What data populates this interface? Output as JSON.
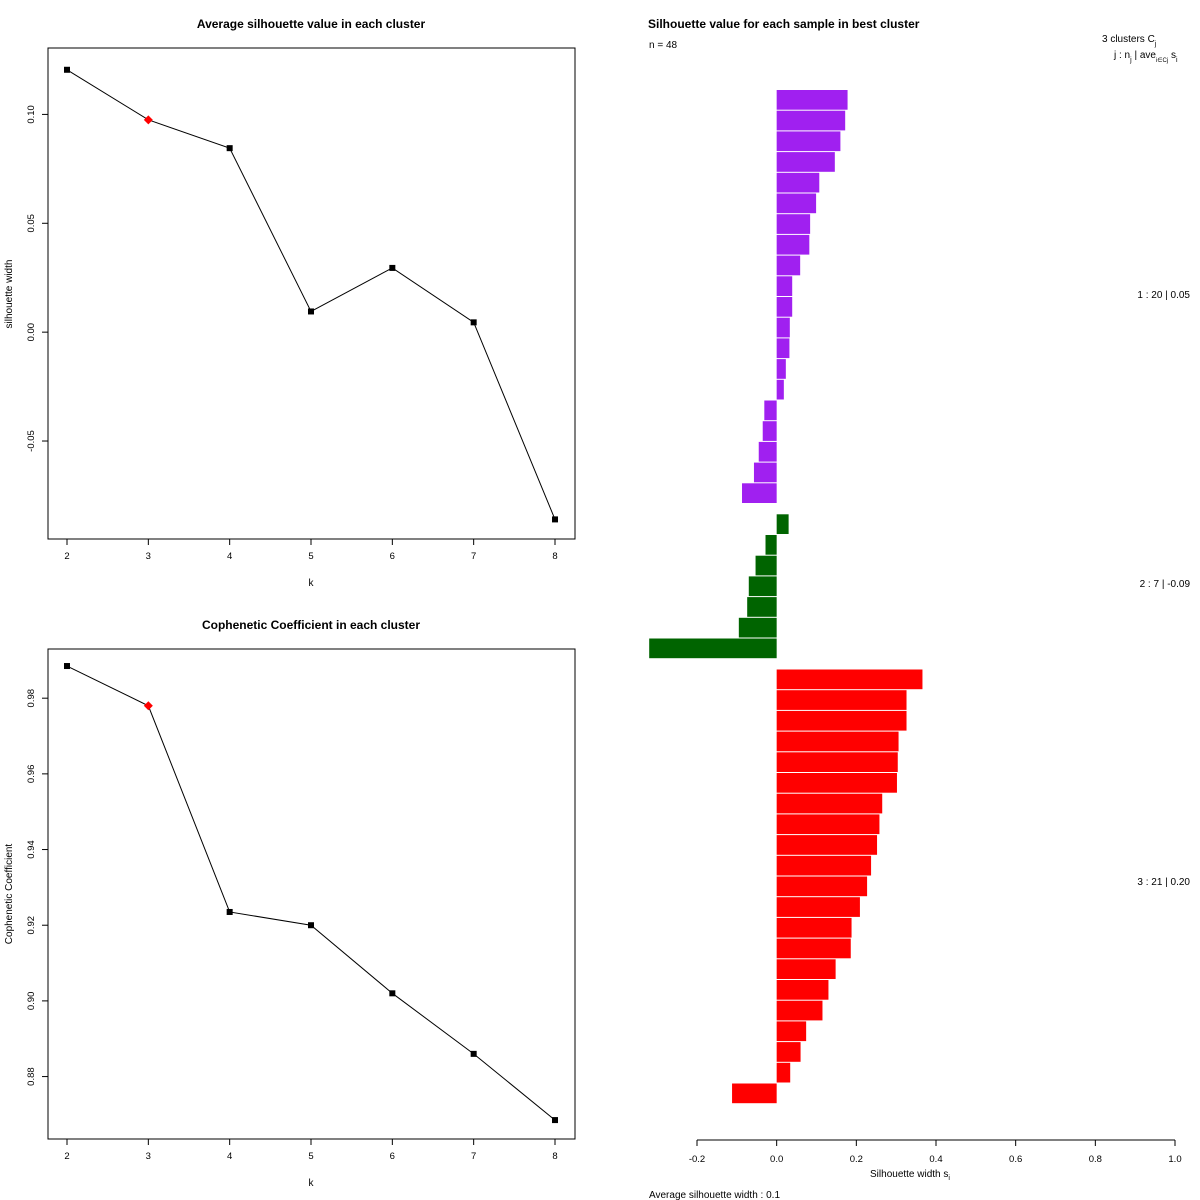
{
  "colors": {
    "cluster1": "#a020f0",
    "cluster2": "#006400",
    "cluster3": "#ff0000",
    "highlight": "#ff0000",
    "line": "#000000"
  },
  "chart_data": [
    {
      "type": "line",
      "title": "Average silhouette value in each cluster",
      "xlabel": "k",
      "ylabel": "silhouette width",
      "x": [
        2,
        3,
        4,
        5,
        6,
        7,
        8
      ],
      "values": [
        0.1205,
        0.0975,
        0.0845,
        0.0095,
        0.0295,
        0.0045,
        -0.086
      ],
      "highlight_x": 3,
      "xlim": [
        2,
        8
      ],
      "ylim": [
        -0.095,
        0.1305
      ],
      "xticks": [
        "2",
        "3",
        "4",
        "5",
        "6",
        "7",
        "8"
      ],
      "yticks": [
        {
          "value": -0.05,
          "label": "-0.05"
        },
        {
          "value": 0.0,
          "label": "0.00"
        },
        {
          "value": 0.05,
          "label": "0.05"
        },
        {
          "value": 0.1,
          "label": "0.10"
        }
      ]
    },
    {
      "type": "line",
      "title": "Cophenetic Coefficient in each cluster",
      "xlabel": "k",
      "ylabel": "Cophenetic Coefficient",
      "x": [
        2,
        3,
        4,
        5,
        6,
        7,
        8
      ],
      "values": [
        0.9885,
        0.978,
        0.9235,
        0.92,
        0.902,
        0.886,
        0.8685
      ],
      "highlight_x": 3,
      "xlim": [
        2,
        8
      ],
      "ylim": [
        0.8635,
        0.993
      ],
      "xticks": [
        "2",
        "3",
        "4",
        "5",
        "6",
        "7",
        "8"
      ],
      "yticks": [
        {
          "value": 0.88,
          "label": "0.88"
        },
        {
          "value": 0.9,
          "label": "0.90"
        },
        {
          "value": 0.92,
          "label": "0.92"
        },
        {
          "value": 0.94,
          "label": "0.94"
        },
        {
          "value": 0.96,
          "label": "0.96"
        },
        {
          "value": 0.98,
          "label": "0.98"
        }
      ]
    },
    {
      "type": "bar",
      "orientation": "horizontal",
      "title": "Silhouette value for each sample in best cluster",
      "n_label": "n = 48",
      "xlabel": "Silhouette width s",
      "xlabel_sub": "i",
      "xlim": [
        -0.2,
        1.0
      ],
      "xticks": [
        "-0.2",
        "0.0",
        "0.2",
        "0.4",
        "0.6",
        "0.8",
        "1.0"
      ],
      "avg_label": "Average silhouette width :  0.1",
      "legend_header": "3  clusters  C",
      "legend_header_sub": "j",
      "legend_subheader": "j :  n",
      "legend_subheader_sub": "j",
      "legend_subheader_rest": " | ave",
      "legend_subheader_sub2": "i∈Cj",
      "legend_subheader_end": " s",
      "legend_subheader_sub3": "i",
      "clusters": [
        {
          "label": "1 :  20  |  0.05",
          "color": "#a020f0",
          "values": [
            0.178,
            0.172,
            0.16,
            0.146,
            0.107,
            0.099,
            0.084,
            0.082,
            0.059,
            0.039,
            0.039,
            0.033,
            0.032,
            0.023,
            0.018,
            -0.031,
            -0.035,
            -0.045,
            -0.057,
            -0.087
          ]
        },
        {
          "label": "2 :  7  |  -0.09",
          "color": "#006400",
          "values": [
            0.03,
            -0.028,
            -0.053,
            -0.07,
            -0.074,
            -0.095,
            -0.32
          ]
        },
        {
          "label": "3 :  21  |  0.20",
          "color": "#ff0000",
          "values": [
            0.366,
            0.326,
            0.326,
            0.306,
            0.304,
            0.302,
            0.265,
            0.258,
            0.252,
            0.237,
            0.227,
            0.209,
            0.188,
            0.186,
            0.148,
            0.13,
            0.115,
            0.074,
            0.06,
            0.034,
            -0.112
          ]
        }
      ]
    }
  ]
}
